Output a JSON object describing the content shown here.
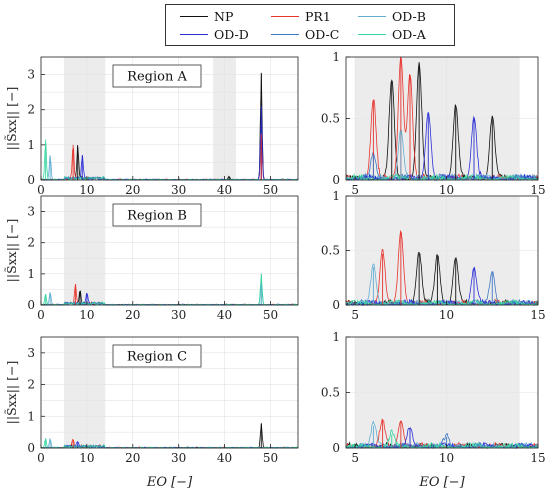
{
  "legend": {
    "items": [
      {
        "name": "NP",
        "color": "#111111"
      },
      {
        "name": "PR1",
        "color": "#e8322c"
      },
      {
        "name": "OD-B",
        "color": "#62aed3"
      },
      {
        "name": "OD-D",
        "color": "#2b2fd6"
      },
      {
        "name": "OD-C",
        "color": "#3f78c4"
      },
      {
        "name": "OD-A",
        "color": "#38d6a0"
      }
    ]
  },
  "ylabel": "||S̃xx|| [−]",
  "xlabel": "EO [−]",
  "chart_data": [
    {
      "type": "line",
      "panel": "region-a-full",
      "annotation": "Region A",
      "xlim": [
        0,
        56
      ],
      "ylim": [
        0,
        3.5
      ],
      "xticks": [
        "0",
        "10",
        "20",
        "30",
        "40",
        "50"
      ],
      "yticks": [
        "0",
        "1",
        "2",
        "3"
      ],
      "shaded_x": [
        [
          5,
          14
        ],
        [
          37.5,
          42.5
        ]
      ],
      "grid": true,
      "peaks": [
        {
          "series": "OD-A",
          "x": 1.0,
          "y": 1.15
        },
        {
          "series": "OD-B",
          "x": 2.0,
          "y": 0.7
        },
        {
          "series": "PR1",
          "x": 7.0,
          "y": 1.0
        },
        {
          "series": "NP",
          "x": 8.0,
          "y": 0.95
        },
        {
          "series": "OD-D",
          "x": 9.0,
          "y": 0.7
        },
        {
          "series": "NP",
          "x": 41.0,
          "y": 0.1
        },
        {
          "series": "NP",
          "x": 48.0,
          "y": 3.05
        },
        {
          "series": "OD-D",
          "x": 48.0,
          "y": 2.1
        },
        {
          "series": "PR1",
          "x": 48.0,
          "y": 1.3
        }
      ]
    },
    {
      "type": "line",
      "panel": "region-a-zoom",
      "xlim": [
        4.5,
        15
      ],
      "ylim": [
        0,
        1
      ],
      "xticks": [
        "5",
        "10",
        "15"
      ],
      "yticks": [
        "0",
        "0.5",
        "1"
      ],
      "shaded_x": [
        [
          5,
          14
        ]
      ],
      "grid": true,
      "peaks": [
        {
          "series": "PR1",
          "x": 6.0,
          "y": 0.65
        },
        {
          "series": "PR1",
          "x": 7.5,
          "y": 1.0
        },
        {
          "series": "NP",
          "x": 7.0,
          "y": 0.8
        },
        {
          "series": "NP",
          "x": 8.5,
          "y": 0.93
        },
        {
          "series": "PR1",
          "x": 8.0,
          "y": 0.85
        },
        {
          "series": "NP",
          "x": 10.5,
          "y": 0.6
        },
        {
          "series": "NP",
          "x": 12.5,
          "y": 0.5
        },
        {
          "series": "OD-D",
          "x": 9.0,
          "y": 0.55
        },
        {
          "series": "OD-D",
          "x": 11.5,
          "y": 0.5
        },
        {
          "series": "OD-B",
          "x": 7.5,
          "y": 0.4
        },
        {
          "series": "OD-C",
          "x": 6.0,
          "y": 0.2
        }
      ]
    },
    {
      "type": "line",
      "panel": "region-b-full",
      "annotation": "Region B",
      "xlim": [
        0,
        56
      ],
      "ylim": [
        0,
        3.5
      ],
      "xticks": [
        "0",
        "10",
        "20",
        "30",
        "40",
        "50"
      ],
      "yticks": [
        "0",
        "1",
        "2",
        "3"
      ],
      "shaded_x": [
        [
          5,
          14
        ]
      ],
      "grid": true,
      "peaks": [
        {
          "series": "OD-A",
          "x": 1.0,
          "y": 0.35
        },
        {
          "series": "OD-B",
          "x": 2.0,
          "y": 0.4
        },
        {
          "series": "PR1",
          "x": 7.5,
          "y": 0.65
        },
        {
          "series": "NP",
          "x": 8.5,
          "y": 0.45
        },
        {
          "series": "OD-D",
          "x": 10.0,
          "y": 0.35
        },
        {
          "series": "OD-A",
          "x": 48.0,
          "y": 1.0
        },
        {
          "series": "OD-B",
          "x": 48.0,
          "y": 0.7
        }
      ]
    },
    {
      "type": "line",
      "panel": "region-b-zoom",
      "xlim": [
        4.5,
        15
      ],
      "ylim": [
        0,
        1
      ],
      "xticks": [
        "5",
        "10",
        "15"
      ],
      "yticks": [
        "0",
        "0.5",
        "1"
      ],
      "shaded_x": [
        [
          5,
          14
        ]
      ],
      "grid": true,
      "peaks": [
        {
          "series": "PR1",
          "x": 6.5,
          "y": 0.47
        },
        {
          "series": "PR1",
          "x": 7.5,
          "y": 0.67
        },
        {
          "series": "NP",
          "x": 8.5,
          "y": 0.47
        },
        {
          "series": "NP",
          "x": 9.5,
          "y": 0.45
        },
        {
          "series": "NP",
          "x": 10.5,
          "y": 0.42
        },
        {
          "series": "OD-D",
          "x": 11.5,
          "y": 0.33
        },
        {
          "series": "OD-B",
          "x": 6.0,
          "y": 0.35
        },
        {
          "series": "OD-C",
          "x": 12.5,
          "y": 0.3
        }
      ]
    },
    {
      "type": "line",
      "panel": "region-c-full",
      "annotation": "Region C",
      "xlim": [
        0,
        56
      ],
      "ylim": [
        0,
        3.5
      ],
      "xticks": [
        "0",
        "10",
        "20",
        "30",
        "40",
        "50"
      ],
      "yticks": [
        "0",
        "1",
        "2",
        "3"
      ],
      "shaded_x": [
        [
          5,
          14
        ]
      ],
      "grid": true,
      "peaks": [
        {
          "series": "OD-A",
          "x": 1.0,
          "y": 0.3
        },
        {
          "series": "OD-B",
          "x": 2.0,
          "y": 0.28
        },
        {
          "series": "PR1",
          "x": 7.0,
          "y": 0.22
        },
        {
          "series": "OD-D",
          "x": 8.0,
          "y": 0.18
        },
        {
          "series": "NP",
          "x": 48.0,
          "y": 0.78
        }
      ]
    },
    {
      "type": "line",
      "panel": "region-c-zoom",
      "xlim": [
        4.5,
        15
      ],
      "ylim": [
        0,
        1
      ],
      "xticks": [
        "5",
        "10",
        "15"
      ],
      "yticks": [
        "0",
        "0.5",
        "1"
      ],
      "shaded_x": [
        [
          5,
          14
        ]
      ],
      "grid": true,
      "peaks": [
        {
          "series": "OD-B",
          "x": 6.0,
          "y": 0.2
        },
        {
          "series": "PR1",
          "x": 6.5,
          "y": 0.24
        },
        {
          "series": "PR1",
          "x": 7.5,
          "y": 0.24
        },
        {
          "series": "OD-D",
          "x": 8.0,
          "y": 0.17
        },
        {
          "series": "OD-A",
          "x": 7.0,
          "y": 0.12
        },
        {
          "series": "OD-C",
          "x": 10.0,
          "y": 0.1
        }
      ]
    }
  ]
}
